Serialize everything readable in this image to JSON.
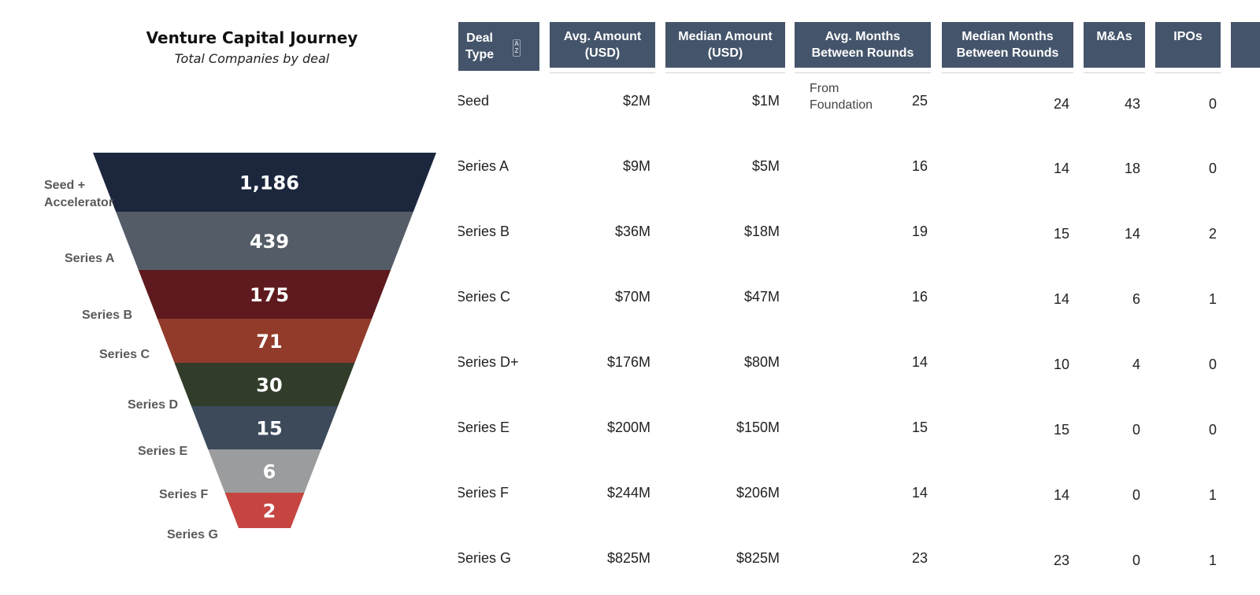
{
  "chart_data": {
    "type": "funnel",
    "title": "Venture Capital Journey",
    "subtitle": "Total Companies by deal",
    "stages": [
      {
        "label": "Seed +\nAccelerator",
        "value": 1186,
        "display": "1,186",
        "color": "#1c273d"
      },
      {
        "label": "Series A",
        "value": 439,
        "display": "439",
        "color": "#545d67"
      },
      {
        "label": "Series B",
        "value": 175,
        "display": "175",
        "color": "#5e1a1e"
      },
      {
        "label": "Series C",
        "value": 71,
        "display": "71",
        "color": "#923b2a"
      },
      {
        "label": "Series D",
        "value": 30,
        "display": "30",
        "color": "#323c2a"
      },
      {
        "label": "Series E",
        "value": 15,
        "display": "15",
        "color": "#3c4a5a"
      },
      {
        "label": "Series F",
        "value": 6,
        "display": "6",
        "color": "#9b9c9d"
      },
      {
        "label": "Series G",
        "value": 2,
        "display": "2",
        "color": "#c64540"
      }
    ]
  },
  "table": {
    "sort_icon": "sort-az-icon",
    "columns": [
      {
        "key": "deal",
        "label": "Deal\nType"
      },
      {
        "key": "avg_amount",
        "label": "Avg. Amount\n(USD)"
      },
      {
        "key": "median_amount",
        "label": "Median Amount\n(USD)"
      },
      {
        "key": "avg_months",
        "label": "Avg. Months\nBetween Rounds"
      },
      {
        "key": "median_months",
        "label": "Median Months\nBetween Rounds"
      },
      {
        "key": "mas",
        "label": "M&As"
      },
      {
        "key": "ipos",
        "label": "IPOs"
      }
    ],
    "rows": [
      {
        "deal": "Seed",
        "avg_amount": "$2M",
        "median_amount": "$1M",
        "note": "From\nFoundation",
        "avg_months": "25",
        "median_months": "24",
        "mas": "43",
        "ipos": "0"
      },
      {
        "deal": "Series A",
        "avg_amount": "$9M",
        "median_amount": "$5M",
        "avg_months": "16",
        "median_months": "14",
        "mas": "18",
        "ipos": "0"
      },
      {
        "deal": "Series B",
        "avg_amount": "$36M",
        "median_amount": "$18M",
        "avg_months": "19",
        "median_months": "15",
        "mas": "14",
        "ipos": "2"
      },
      {
        "deal": "Series C",
        "avg_amount": "$70M",
        "median_amount": "$47M",
        "avg_months": "16",
        "median_months": "14",
        "mas": "6",
        "ipos": "1"
      },
      {
        "deal": "Series D+",
        "avg_amount": "$176M",
        "median_amount": "$80M",
        "avg_months": "14",
        "median_months": "10",
        "mas": "4",
        "ipos": "0"
      },
      {
        "deal": "Series E",
        "avg_amount": "$200M",
        "median_amount": "$150M",
        "avg_months": "15",
        "median_months": "15",
        "mas": "0",
        "ipos": "0"
      },
      {
        "deal": "Series F",
        "avg_amount": "$244M",
        "median_amount": "$206M",
        "avg_months": "14",
        "median_months": "14",
        "mas": "0",
        "ipos": "1"
      },
      {
        "deal": "Series G",
        "avg_amount": "$825M",
        "median_amount": "$825M",
        "avg_months": "23",
        "median_months": "23",
        "mas": "0",
        "ipos": "1"
      }
    ]
  }
}
